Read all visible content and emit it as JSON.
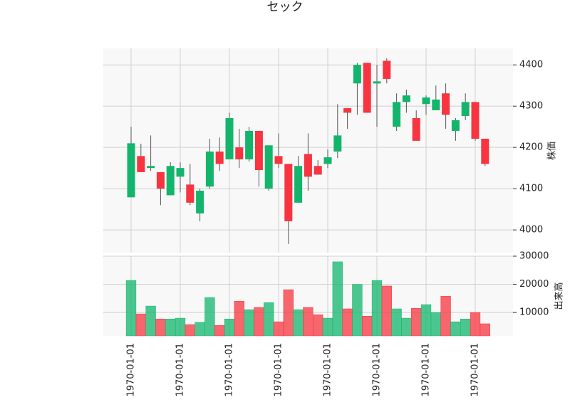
{
  "chart_data": {
    "type": "candlestick",
    "title": "セック",
    "categories": [
      "1970-01-01",
      null,
      null,
      null,
      null,
      "1970-01-01",
      null,
      null,
      null,
      null,
      "1970-01-01",
      null,
      null,
      null,
      null,
      "1970-01-01",
      null,
      null,
      null,
      null,
      "1970-01-01",
      null,
      null,
      null,
      null,
      "1970-01-01",
      null,
      null,
      null,
      null,
      "1970-01-01",
      null,
      null,
      null,
      null,
      "1970-01-01",
      null
    ],
    "open": [
      4079,
      4179,
      4150,
      4140,
      4084,
      4129,
      4110,
      4040,
      4105,
      4190,
      4171,
      4200,
      4171,
      4240,
      4100,
      4179,
      4160,
      4066,
      4184,
      4155,
      4160,
      4190,
      4295,
      4355,
      4405,
      4355,
      4410,
      4250,
      4310,
      4271,
      4305,
      4290,
      4331,
      4240,
      4276,
      4310,
      4221
    ],
    "high": [
      4250,
      4209,
      4229,
      4140,
      4164,
      4164,
      4160,
      4100,
      4221,
      4224,
      4284,
      4245,
      4250,
      4240,
      4205,
      4234,
      4160,
      4179,
      4234,
      4169,
      4195,
      4305,
      4295,
      4405,
      4405,
      4400,
      4416,
      4331,
      4340,
      4290,
      4326,
      4350,
      4355,
      4271,
      4331,
      4310,
      4221
    ],
    "low": [
      4079,
      4140,
      4143,
      4060,
      4084,
      4091,
      4060,
      4021,
      4100,
      4143,
      4171,
      4150,
      4166,
      4105,
      4095,
      4150,
      3966,
      4066,
      4095,
      4134,
      4150,
      4174,
      4245,
      4279,
      4284,
      4250,
      4355,
      4240,
      4284,
      4216,
      4279,
      4290,
      4245,
      4216,
      4266,
      4216,
      4155
    ],
    "close": [
      4210,
      4140,
      4155,
      4100,
      4155,
      4150,
      4066,
      4095,
      4190,
      4160,
      4271,
      4171,
      4240,
      4145,
      4205,
      4160,
      4021,
      4155,
      4129,
      4134,
      4176,
      4229,
      4284,
      4400,
      4284,
      4360,
      4366,
      4310,
      4326,
      4216,
      4321,
      4316,
      4279,
      4266,
      4310,
      4221,
      4160
    ],
    "volume": [
      21400,
      9500,
      12300,
      7700,
      7700,
      8000,
      5700,
      6500,
      15300,
      5400,
      7700,
      14000,
      11000,
      11800,
      13500,
      6700,
      18100,
      11000,
      11800,
      9200,
      8000,
      28000,
      11300,
      20000,
      8700,
      21400,
      19400,
      11300,
      8000,
      11500,
      12800,
      10000,
      15800,
      6700,
      7700,
      10000,
      6000
    ],
    "up_color": "#13b56c",
    "down_color": "#f7343f",
    "ylabel": "株価",
    "ylim": [
      3945,
      4440
    ],
    "yticks": [
      4000,
      4100,
      4200,
      4300,
      4400
    ],
    "y2label": "出来高",
    "y2lim": [
      1700,
      30000
    ],
    "y2ticks": [
      10000,
      20000,
      30000
    ],
    "grid": true
  }
}
